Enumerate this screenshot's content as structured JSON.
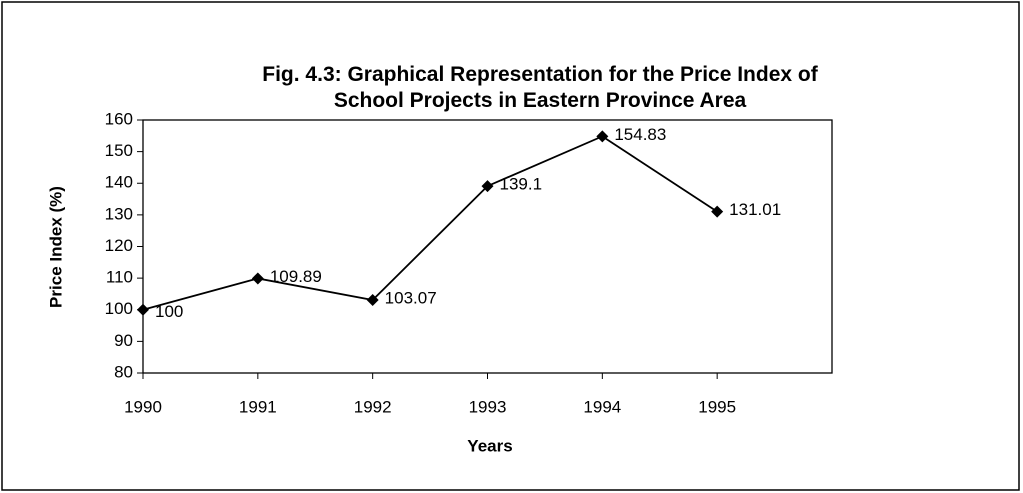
{
  "chart_data": {
    "type": "line",
    "title": "Fig. 4.3: Graphical Representation for the Price Index of School Projects in Eastern Province Area",
    "x_label": "Years",
    "y_label": "Price Index (%)",
    "x": [
      1990,
      1991,
      1992,
      1993,
      1994,
      1995
    ],
    "series": [
      {
        "name": "Price Index",
        "color": "#000000",
        "values": [
          100,
          109.89,
          103.07,
          139.1,
          154.83,
          131.01
        ]
      }
    ],
    "xlim": [
      1990,
      1996
    ],
    "xticks": [
      1990,
      1991,
      1992,
      1993,
      1994,
      1995
    ],
    "ylim": [
      80,
      160
    ],
    "yticks": [
      80,
      90,
      100,
      110,
      120,
      130,
      140,
      150,
      160
    ],
    "grid": false
  }
}
